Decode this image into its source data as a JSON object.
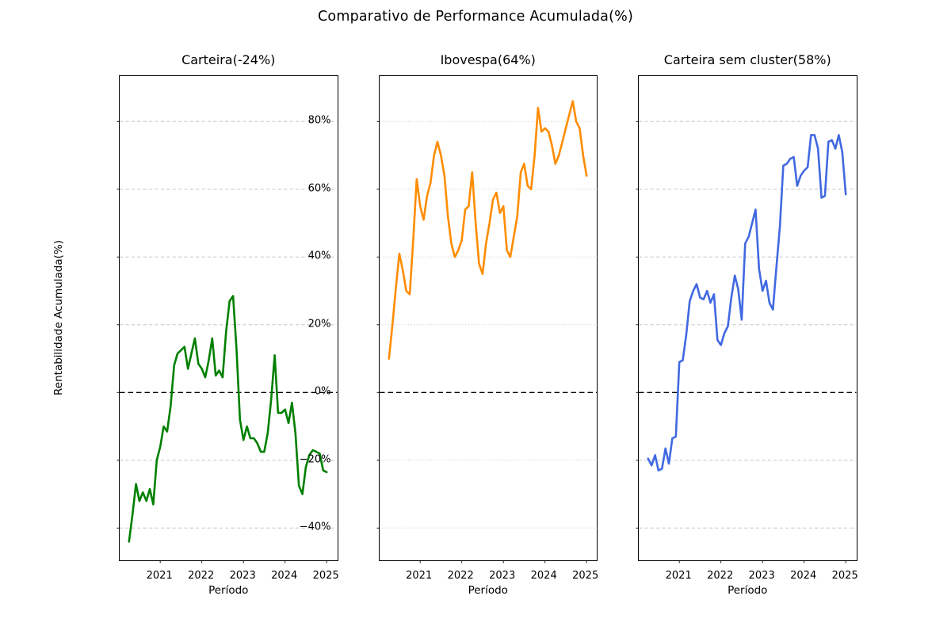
{
  "chart_data": {
    "type": "line",
    "title": "Comparativo de Performance Acumulada(%)",
    "xlabel": "Período",
    "ylabel": "Rentabilidade Acumulada(%)",
    "x": [
      "2020-04",
      "2020-05",
      "2020-06",
      "2020-07",
      "2020-08",
      "2020-09",
      "2020-10",
      "2020-11",
      "2020-12",
      "2021-01",
      "2021-02",
      "2021-03",
      "2021-04",
      "2021-05",
      "2021-06",
      "2021-07",
      "2021-08",
      "2021-09",
      "2021-10",
      "2021-11",
      "2021-12",
      "2022-01",
      "2022-02",
      "2022-03",
      "2022-04",
      "2022-05",
      "2022-06",
      "2022-07",
      "2022-08",
      "2022-09",
      "2022-10",
      "2022-11",
      "2022-12",
      "2023-01",
      "2023-02",
      "2023-03",
      "2023-04",
      "2023-05",
      "2023-06",
      "2023-07",
      "2023-08",
      "2023-09",
      "2023-10",
      "2023-11",
      "2023-12",
      "2024-01",
      "2024-02",
      "2024-03",
      "2024-04",
      "2024-05",
      "2024-06",
      "2024-07",
      "2024-08",
      "2024-09",
      "2024-10",
      "2024-11",
      "2024-12",
      "2025-01"
    ],
    "x_tick_labels": [
      "2021",
      "2022",
      "2023",
      "2024",
      "2025"
    ],
    "y_tick_labels": [
      "80%",
      "60%",
      "40%",
      "20%",
      "0%",
      "−20%",
      "−40%"
    ],
    "y_tick_values": [
      80,
      60,
      40,
      20,
      0,
      -20,
      -40
    ],
    "ylim": [
      -50.5,
      93.5
    ],
    "grid": true,
    "zero_line": "0% black dashed reference line in every panel",
    "legend": "none",
    "subplots": [
      {
        "title": "Carteira(-24%)",
        "name": "Carteira",
        "final_pct": -24,
        "color": "#008000",
        "grid_style": "dashed",
        "values": [
          -44,
          -36,
          -27,
          -32,
          -29.5,
          -32,
          -28.5,
          -33,
          -20,
          -16,
          -10,
          -11.5,
          -4,
          8,
          11.5,
          12.5,
          13.5,
          7,
          11.5,
          16,
          8.5,
          7,
          4.5,
          9.5,
          16,
          5,
          6.5,
          4.5,
          18,
          27,
          28.5,
          13,
          -8,
          -14,
          -10,
          -13.5,
          -13.5,
          -15,
          -17.5,
          -17.5,
          -12,
          -2,
          11,
          -6,
          -6,
          -5,
          -9,
          -3,
          -12,
          -27.5,
          -30,
          -22,
          -18.5,
          -17,
          -17.5,
          -18,
          -23,
          -23.5
        ]
      },
      {
        "title": "Ibovespa(64%)",
        "name": "Ibovespa",
        "final_pct": 64,
        "color": "#ff8c00",
        "grid_style": "dotted",
        "values": [
          10,
          20,
          31,
          41,
          36,
          30,
          29,
          45,
          63,
          55,
          51,
          58,
          62,
          70,
          74,
          70,
          64,
          52,
          44,
          40,
          42,
          45,
          54,
          55,
          65,
          50,
          38,
          35,
          44,
          50,
          57,
          59,
          53,
          55,
          42,
          40,
          46,
          52,
          65,
          67.5,
          61,
          60,
          70,
          84,
          77,
          78,
          77,
          73,
          67.5,
          70,
          74,
          78,
          82,
          86,
          80,
          78,
          70,
          64
        ]
      },
      {
        "title": "Carteira sem cluster(58%)",
        "name": "Carteira sem cluster",
        "final_pct": 58,
        "color": "#4169e1",
        "grid_style": "dashed",
        "values": [
          -19.5,
          -21.5,
          -18.5,
          -23,
          -22.5,
          -16.5,
          -21,
          -13.5,
          -13,
          9,
          9.5,
          17,
          27,
          30,
          32,
          28,
          27.5,
          30,
          26.5,
          29,
          15.5,
          14,
          17.5,
          19.5,
          28,
          34.5,
          30.5,
          21.5,
          44,
          46,
          50,
          54,
          36.5,
          30,
          33,
          26.5,
          24.5,
          37,
          49,
          67,
          67.5,
          69,
          69.5,
          61,
          64,
          65.5,
          66.5,
          76,
          76,
          72,
          57.5,
          58,
          74,
          74.5,
          72,
          76,
          71,
          58.5
        ]
      }
    ]
  }
}
